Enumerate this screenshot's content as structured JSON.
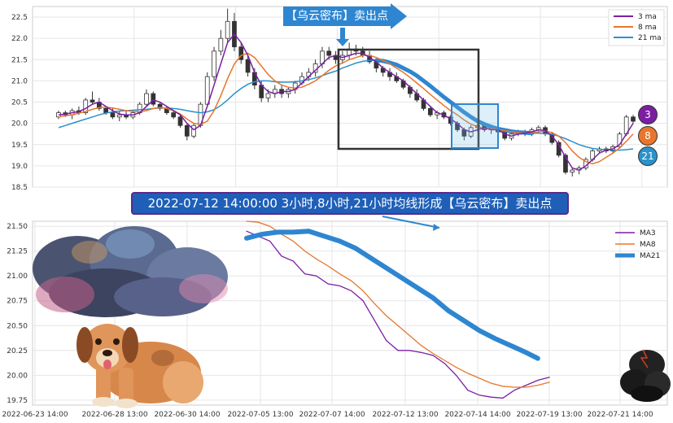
{
  "banner_text": "2022-07-12 14:00:00 3小时,8小时,21小时均线形成【乌云密布】卖出点",
  "arrow_label": "【乌云密布】卖出点",
  "badges": {
    "ma3": "3",
    "ma8": "8",
    "ma21": "21"
  },
  "colors": {
    "ma3": "#7b1fa2",
    "ma8": "#e8762c",
    "ma21": "#2a92cc",
    "ma21_thick": "#2e86d1",
    "banner": "#1f5fb8"
  },
  "icons": [
    "storm-cloud-icon",
    "dog-icon",
    "small-storm-cloud-icon"
  ],
  "chart_data": [
    {
      "type": "candlestick-line",
      "ylim": [
        18.5,
        22.75
      ],
      "y_ticks": [
        "18.5",
        "19.0",
        "19.5",
        "20.0",
        "20.5",
        "21.0",
        "21.5",
        "22.0",
        "22.5"
      ],
      "legend": [
        "3 ma",
        "8 ma",
        "21 ma"
      ],
      "legend_position": "top-right",
      "x_count": 128,
      "candles": [
        [
          20.15,
          20.3,
          20.1,
          20.25
        ],
        [
          20.25,
          20.3,
          20.15,
          20.2
        ],
        [
          20.2,
          20.35,
          20.1,
          20.3
        ],
        [
          20.3,
          20.4,
          20.2,
          20.25
        ],
        [
          20.25,
          20.6,
          20.2,
          20.55
        ],
        [
          20.55,
          20.75,
          20.45,
          20.5
        ],
        [
          20.5,
          20.6,
          20.3,
          20.35
        ],
        [
          20.35,
          20.4,
          20.2,
          20.25
        ],
        [
          20.25,
          20.35,
          20.1,
          20.15
        ],
        [
          20.15,
          20.3,
          20.05,
          20.2
        ],
        [
          20.2,
          20.3,
          20.1,
          20.15
        ],
        [
          20.15,
          20.3,
          20.1,
          20.25
        ],
        [
          20.25,
          20.5,
          20.2,
          20.45
        ],
        [
          20.45,
          20.8,
          20.4,
          20.7
        ],
        [
          20.7,
          20.75,
          20.4,
          20.45
        ],
        [
          20.45,
          20.5,
          20.3,
          20.35
        ],
        [
          20.35,
          20.4,
          20.2,
          20.25
        ],
        [
          20.25,
          20.3,
          20.1,
          20.15
        ],
        [
          20.15,
          20.2,
          19.9,
          19.95
        ],
        [
          19.95,
          20.0,
          19.6,
          19.7
        ],
        [
          19.7,
          20.0,
          19.65,
          19.95
        ],
        [
          19.95,
          20.5,
          19.9,
          20.45
        ],
        [
          20.45,
          21.2,
          20.4,
          21.1
        ],
        [
          21.1,
          21.8,
          21.0,
          21.7
        ],
        [
          21.7,
          22.2,
          21.6,
          22.0
        ],
        [
          22.0,
          22.7,
          21.9,
          22.4
        ],
        [
          22.4,
          22.6,
          21.7,
          21.8
        ],
        [
          21.8,
          21.9,
          21.4,
          21.5
        ],
        [
          21.5,
          21.6,
          21.1,
          21.2
        ],
        [
          21.2,
          21.3,
          20.8,
          20.9
        ],
        [
          20.9,
          21.0,
          20.5,
          20.6
        ],
        [
          20.6,
          20.8,
          20.5,
          20.7
        ],
        [
          20.7,
          20.9,
          20.6,
          20.8
        ],
        [
          20.8,
          20.9,
          20.6,
          20.7
        ],
        [
          20.7,
          20.85,
          20.6,
          20.8
        ],
        [
          20.8,
          21.0,
          20.7,
          20.95
        ],
        [
          20.95,
          21.2,
          20.9,
          21.1
        ],
        [
          21.1,
          21.3,
          21.0,
          21.2
        ],
        [
          21.2,
          21.5,
          21.1,
          21.4
        ],
        [
          21.4,
          21.8,
          21.3,
          21.7
        ],
        [
          21.7,
          21.8,
          21.5,
          21.6
        ],
        [
          21.6,
          21.7,
          21.4,
          21.5
        ],
        [
          21.5,
          21.7,
          21.4,
          21.6
        ],
        [
          21.6,
          21.9,
          21.5,
          21.75
        ],
        [
          21.75,
          21.85,
          21.6,
          21.7
        ],
        [
          21.7,
          21.8,
          21.55,
          21.6
        ],
        [
          21.6,
          21.7,
          21.4,
          21.45
        ],
        [
          21.45,
          21.5,
          21.2,
          21.3
        ],
        [
          21.3,
          21.35,
          21.1,
          21.2
        ],
        [
          21.2,
          21.3,
          21.0,
          21.1
        ],
        [
          21.1,
          21.2,
          20.95,
          21.0
        ],
        [
          21.0,
          21.05,
          20.8,
          20.85
        ],
        [
          20.85,
          20.9,
          20.6,
          20.7
        ],
        [
          20.7,
          20.8,
          20.5,
          20.55
        ],
        [
          20.55,
          20.6,
          20.3,
          20.35
        ],
        [
          20.35,
          20.4,
          20.15,
          20.2
        ],
        [
          20.2,
          20.3,
          20.1,
          20.25
        ],
        [
          20.25,
          20.3,
          20.1,
          20.15
        ],
        [
          20.15,
          20.2,
          19.95,
          20.0
        ],
        [
          20.0,
          20.05,
          19.8,
          19.85
        ],
        [
          19.85,
          19.9,
          19.6,
          19.7
        ],
        [
          19.7,
          19.95,
          19.65,
          19.9
        ],
        [
          19.9,
          20.0,
          19.8,
          19.95
        ],
        [
          19.95,
          20.0,
          19.8,
          19.85
        ],
        [
          19.85,
          19.95,
          19.75,
          19.9
        ],
        [
          19.9,
          19.95,
          19.75,
          19.8
        ],
        [
          19.8,
          19.85,
          19.6,
          19.65
        ],
        [
          19.65,
          19.8,
          19.6,
          19.75
        ],
        [
          19.75,
          19.85,
          19.7,
          19.8
        ],
        [
          19.8,
          19.85,
          19.7,
          19.75
        ],
        [
          19.75,
          19.9,
          19.7,
          19.85
        ],
        [
          19.85,
          19.95,
          19.8,
          19.9
        ],
        [
          19.9,
          19.95,
          19.7,
          19.75
        ],
        [
          19.75,
          19.8,
          19.5,
          19.55
        ],
        [
          19.55,
          19.6,
          19.2,
          19.25
        ],
        [
          19.25,
          19.3,
          18.8,
          18.85
        ],
        [
          18.85,
          18.95,
          18.75,
          18.9
        ],
        [
          18.9,
          19.0,
          18.8,
          18.95
        ],
        [
          18.95,
          19.2,
          18.9,
          19.15
        ],
        [
          19.15,
          19.4,
          19.1,
          19.35
        ],
        [
          19.35,
          19.45,
          19.3,
          19.4
        ],
        [
          19.4,
          19.45,
          19.3,
          19.35
        ],
        [
          19.35,
          19.5,
          19.3,
          19.45
        ],
        [
          19.45,
          19.8,
          19.4,
          19.75
        ],
        [
          19.75,
          20.2,
          19.7,
          20.15
        ],
        [
          20.15,
          20.2,
          20.0,
          20.05
        ]
      ],
      "ma3": [
        20.2,
        20.22,
        20.25,
        20.28,
        20.35,
        20.45,
        20.5,
        20.4,
        20.3,
        20.22,
        20.2,
        20.2,
        20.25,
        20.4,
        20.55,
        20.5,
        20.4,
        20.3,
        20.2,
        20.0,
        19.85,
        19.95,
        20.4,
        20.9,
        21.4,
        21.9,
        22.1,
        21.9,
        21.6,
        21.2,
        20.9,
        20.75,
        20.7,
        20.75,
        20.75,
        20.8,
        20.95,
        21.1,
        21.25,
        21.4,
        21.55,
        21.6,
        21.55,
        21.6,
        21.65,
        21.65,
        21.55,
        21.45,
        21.3,
        21.2,
        21.1,
        21.0,
        20.85,
        20.7,
        20.55,
        20.4,
        20.25,
        20.2,
        20.1,
        20.0,
        19.85,
        19.8,
        19.85,
        19.9,
        19.85,
        19.85,
        19.75,
        19.7,
        19.75,
        19.77,
        19.8,
        19.85,
        19.83,
        19.7,
        19.5,
        19.2,
        18.95,
        18.9,
        19.0,
        19.15,
        19.3,
        19.37,
        19.4,
        19.5,
        19.75,
        20.0
      ],
      "ma8": [
        20.15,
        20.18,
        20.2,
        20.24,
        20.28,
        20.33,
        20.37,
        20.38,
        20.36,
        20.33,
        20.3,
        20.28,
        20.27,
        20.3,
        20.35,
        20.37,
        20.35,
        20.3,
        20.22,
        20.1,
        20.0,
        19.98,
        20.05,
        20.3,
        20.65,
        21.05,
        21.4,
        21.6,
        21.65,
        21.55,
        21.35,
        21.15,
        21.0,
        20.9,
        20.85,
        20.83,
        20.85,
        20.92,
        21.0,
        21.12,
        21.25,
        21.35,
        21.42,
        21.5,
        21.55,
        21.6,
        21.6,
        21.55,
        21.48,
        21.4,
        21.3,
        21.2,
        21.08,
        20.95,
        20.82,
        20.68,
        20.55,
        20.42,
        20.3,
        20.2,
        20.08,
        19.98,
        19.92,
        19.88,
        19.87,
        19.86,
        19.83,
        19.8,
        19.78,
        19.77,
        19.78,
        19.8,
        19.82,
        19.78,
        19.7,
        19.55,
        19.35,
        19.2,
        19.1,
        19.05,
        19.1,
        19.2,
        19.3,
        19.42,
        19.58,
        19.75
      ],
      "ma21": [
        19.9,
        19.95,
        20.0,
        20.05,
        20.1,
        20.15,
        20.2,
        20.24,
        20.27,
        20.29,
        20.3,
        20.31,
        20.32,
        20.33,
        20.35,
        20.36,
        20.36,
        20.35,
        20.33,
        20.3,
        20.27,
        20.25,
        20.27,
        20.32,
        20.42,
        20.55,
        20.7,
        20.82,
        20.92,
        20.98,
        21.0,
        21.0,
        20.98,
        20.97,
        20.97,
        20.98,
        21.0,
        21.03,
        21.07,
        21.12,
        21.18,
        21.23,
        21.3,
        21.36,
        21.42,
        21.46,
        21.48,
        21.48,
        21.47,
        21.43,
        21.38,
        21.3,
        21.22,
        21.12,
        21.0,
        20.88,
        20.75,
        20.62,
        20.5,
        20.38,
        20.26,
        20.15,
        20.05,
        19.98,
        19.92,
        19.87,
        19.84,
        19.81,
        19.79,
        19.78,
        19.77,
        19.77,
        19.76,
        19.74,
        19.7,
        19.64,
        19.57,
        19.5,
        19.45,
        19.41,
        19.39,
        19.38,
        19.37,
        19.37,
        19.38,
        19.4
      ],
      "ma21_highlight_range": [
        47,
        70
      ]
    },
    {
      "type": "line",
      "ylim": [
        19.7,
        21.55
      ],
      "y_ticks": [
        "19.75",
        "20.00",
        "20.25",
        "20.50",
        "20.75",
        "21.00",
        "21.25",
        "21.50"
      ],
      "x_ticks": [
        "2022-06-23 14:00",
        "2022-06-28 13:00",
        "2022-06-30 14:00",
        "2022-07-05 13:00",
        "2022-07-07 14:00",
        "2022-07-12 13:00",
        "2022-07-14 14:00",
        "2022-07-19 13:00",
        "2022-07-21 14:00"
      ],
      "legend": [
        "MA3",
        "MA8",
        "MA21"
      ],
      "legend_position": "top-right",
      "x_range": [
        0,
        100
      ],
      "series": [
        {
          "name": "MA3",
          "x": [
            0,
            3,
            6,
            9,
            12,
            15,
            18,
            21,
            24,
            27,
            30,
            33,
            36,
            39,
            42,
            45,
            48,
            51,
            54,
            57,
            60,
            63,
            66,
            69,
            72,
            75,
            78
          ],
          "values": [
            21.45,
            21.4,
            21.35,
            21.2,
            21.15,
            21.02,
            21.0,
            20.92,
            20.9,
            20.85,
            20.75,
            20.55,
            20.35,
            20.25,
            20.25,
            20.23,
            20.2,
            20.12,
            20.0,
            19.85,
            19.8,
            19.78,
            19.77,
            19.85,
            19.9,
            19.95,
            19.98
          ]
        },
        {
          "name": "MA8",
          "x": [
            0,
            3,
            6,
            9,
            12,
            15,
            18,
            21,
            24,
            27,
            30,
            33,
            36,
            39,
            42,
            45,
            48,
            51,
            54,
            57,
            60,
            63,
            66,
            69,
            72,
            75,
            78
          ],
          "values": [
            21.55,
            21.54,
            21.5,
            21.42,
            21.35,
            21.25,
            21.17,
            21.1,
            21.02,
            20.95,
            20.85,
            20.72,
            20.6,
            20.5,
            20.4,
            20.3,
            20.22,
            20.15,
            20.08,
            20.02,
            19.97,
            19.92,
            19.89,
            19.88,
            19.88,
            19.9,
            19.93
          ]
        },
        {
          "name": "MA21",
          "x": [
            0,
            4,
            8,
            12,
            16,
            20,
            24,
            28,
            32,
            36,
            40,
            44,
            48,
            52,
            56,
            60,
            64,
            68,
            72,
            75
          ],
          "values": [
            21.38,
            21.42,
            21.44,
            21.44,
            21.45,
            21.4,
            21.35,
            21.28,
            21.18,
            21.08,
            20.98,
            20.88,
            20.78,
            20.65,
            20.55,
            20.45,
            20.37,
            20.3,
            20.23,
            20.17
          ]
        }
      ]
    }
  ]
}
